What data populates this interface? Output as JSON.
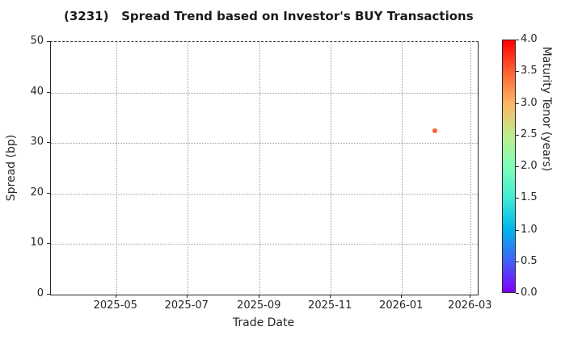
{
  "chart_data": {
    "type": "scatter",
    "title": "(3231)   Spread Trend based on Investor's BUY Transactions",
    "xlabel": "Trade Date",
    "ylabel": "Spread (bp)",
    "colorbar_label": "Maturity Tenor (years)",
    "grid": true,
    "legend": false,
    "x_range": [
      "2025-03-06",
      "2026-03-07"
    ],
    "ylim": [
      0,
      50
    ],
    "colorbar_lim": [
      0,
      4
    ],
    "x_ticks": [
      "2025-05",
      "2025-07",
      "2025-09",
      "2025-11",
      "2026-01",
      "2026-03"
    ],
    "y_ticks": [
      0,
      10,
      20,
      30,
      40,
      50
    ],
    "colorbar_ticks": [
      "0.0",
      "0.5",
      "1.0",
      "1.5",
      "2.0",
      "2.5",
      "3.0",
      "3.5",
      "4.0"
    ],
    "colormap": "rainbow",
    "colormap_stops_bottom_to_top": [
      "#8000ff",
      "#4062fa",
      "#00b5ec",
      "#40ecd4",
      "#80ffb5",
      "#bfec8e",
      "#ffb462",
      "#ff6232",
      "#ff0000"
    ],
    "points": [
      {
        "date": "2026-01-29",
        "spread_bp": 32.5,
        "maturity_years": 3.5,
        "color": "#ff6232"
      }
    ],
    "colors": {
      "spine": "#262626",
      "gridline": "#9c9c9c",
      "title_text": "#1a1a1a"
    }
  }
}
